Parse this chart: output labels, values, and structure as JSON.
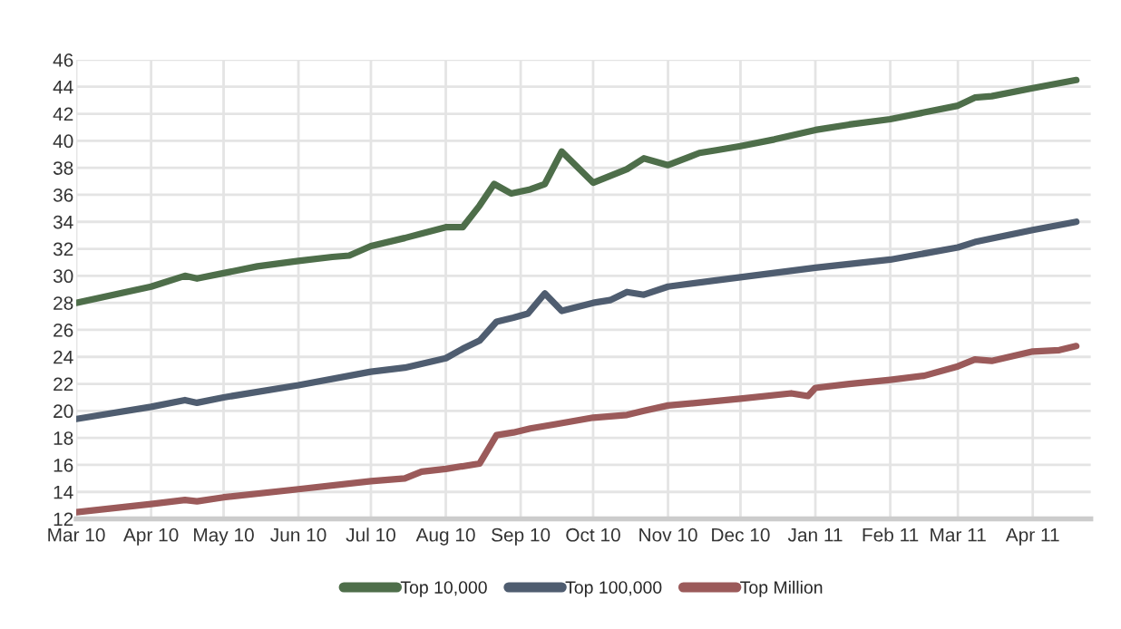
{
  "chart_data": {
    "type": "line",
    "xlim": [
      "2010-03-01",
      "2011-04-25"
    ],
    "xticks": [
      {
        "value": "2010-03-01",
        "label": "Mar 10"
      },
      {
        "value": "2010-04-01",
        "label": "Apr 10"
      },
      {
        "value": "2010-05-01",
        "label": "May 10"
      },
      {
        "value": "2010-06-01",
        "label": "Jun 10"
      },
      {
        "value": "2010-07-01",
        "label": "Jul 10"
      },
      {
        "value": "2010-08-01",
        "label": "Aug 10"
      },
      {
        "value": "2010-09-01",
        "label": "Sep 10"
      },
      {
        "value": "2010-10-01",
        "label": "Oct 10"
      },
      {
        "value": "2010-11-01",
        "label": "Nov 10"
      },
      {
        "value": "2010-12-01",
        "label": "Dec 10"
      },
      {
        "value": "2011-01-01",
        "label": "Jan 11"
      },
      {
        "value": "2011-02-01",
        "label": "Feb 11"
      },
      {
        "value": "2011-03-01",
        "label": "Mar 11"
      },
      {
        "value": "2011-04-01",
        "label": "Apr 11"
      }
    ],
    "ylim": [
      12,
      46
    ],
    "yticks": [
      12,
      14,
      16,
      18,
      20,
      22,
      24,
      26,
      28,
      30,
      32,
      34,
      36,
      38,
      40,
      42,
      44,
      46
    ],
    "grid": true,
    "legend": "bottom",
    "marker": "none",
    "line_style": "solid",
    "series": [
      {
        "name": "Top 10,000",
        "color": "#4e6e4a",
        "x": [
          "2010-03-01",
          "2010-04-01",
          "2010-04-15",
          "2010-04-20",
          "2010-05-01",
          "2010-05-15",
          "2010-06-01",
          "2010-06-15",
          "2010-06-22",
          "2010-07-01",
          "2010-07-15",
          "2010-08-01",
          "2010-08-08",
          "2010-08-15",
          "2010-08-21",
          "2010-08-28",
          "2010-09-05",
          "2010-09-11",
          "2010-09-18",
          "2010-10-01",
          "2010-10-08",
          "2010-10-15",
          "2010-10-22",
          "2010-11-01",
          "2010-11-14",
          "2010-11-21",
          "2010-12-01",
          "2010-12-15",
          "2011-01-01",
          "2011-01-15",
          "2011-02-01",
          "2011-02-15",
          "2011-03-01",
          "2011-03-08",
          "2011-03-15",
          "2011-04-01",
          "2011-04-19"
        ],
        "values": [
          28.0,
          29.2,
          30.0,
          29.8,
          30.2,
          30.7,
          31.1,
          31.4,
          31.5,
          32.2,
          32.8,
          33.6,
          33.6,
          35.2,
          36.8,
          36.1,
          36.4,
          36.8,
          39.2,
          36.9,
          37.4,
          37.9,
          38.7,
          38.2,
          39.1,
          39.3,
          39.6,
          40.1,
          40.8,
          41.2,
          41.6,
          42.1,
          42.6,
          43.2,
          43.3,
          43.9,
          44.5
        ]
      },
      {
        "name": "Top 100,000",
        "color": "#4f5d70",
        "x": [
          "2010-03-01",
          "2010-04-01",
          "2010-04-15",
          "2010-04-20",
          "2010-05-01",
          "2010-06-01",
          "2010-07-01",
          "2010-07-15",
          "2010-08-01",
          "2010-08-08",
          "2010-08-15",
          "2010-08-22",
          "2010-08-29",
          "2010-09-04",
          "2010-09-11",
          "2010-09-18",
          "2010-10-01",
          "2010-10-08",
          "2010-10-15",
          "2010-10-22",
          "2010-11-01",
          "2010-12-01",
          "2011-01-01",
          "2011-02-01",
          "2011-03-01",
          "2011-03-08",
          "2011-04-01",
          "2011-04-19"
        ],
        "values": [
          19.4,
          20.3,
          20.8,
          20.6,
          21.0,
          21.9,
          22.9,
          23.2,
          23.9,
          24.6,
          25.2,
          26.6,
          26.9,
          27.2,
          28.7,
          27.4,
          28.0,
          28.2,
          28.8,
          28.6,
          29.2,
          29.9,
          30.6,
          31.2,
          32.1,
          32.5,
          33.4,
          34.0
        ]
      },
      {
        "name": "Top Million",
        "color": "#9b5a5a",
        "x": [
          "2010-03-01",
          "2010-04-01",
          "2010-04-15",
          "2010-04-20",
          "2010-05-01",
          "2010-06-01",
          "2010-07-01",
          "2010-07-15",
          "2010-07-22",
          "2010-08-01",
          "2010-08-15",
          "2010-08-22",
          "2010-08-29",
          "2010-09-05",
          "2010-09-15",
          "2010-10-01",
          "2010-10-15",
          "2010-10-22",
          "2010-11-01",
          "2010-12-01",
          "2010-12-22",
          "2010-12-29",
          "2011-01-01",
          "2011-01-15",
          "2011-02-01",
          "2011-02-15",
          "2011-03-01",
          "2011-03-08",
          "2011-03-15",
          "2011-04-01",
          "2011-04-12",
          "2011-04-19"
        ],
        "values": [
          12.5,
          13.1,
          13.4,
          13.3,
          13.6,
          14.2,
          14.8,
          15.0,
          15.5,
          15.7,
          16.1,
          18.2,
          18.4,
          18.7,
          19.0,
          19.5,
          19.7,
          20.0,
          20.4,
          20.9,
          21.3,
          21.1,
          21.7,
          22.0,
          22.3,
          22.6,
          23.3,
          23.8,
          23.7,
          24.4,
          24.5,
          24.8
        ]
      }
    ]
  }
}
